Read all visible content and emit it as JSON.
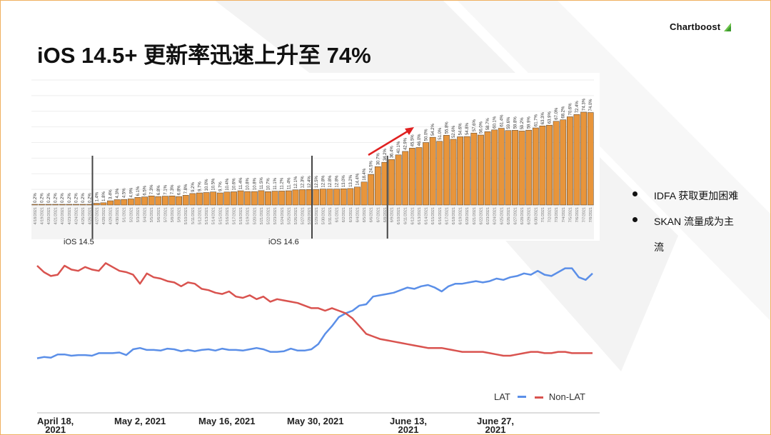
{
  "header": {
    "logo_text": "Chartboost",
    "title": "iOS 14.5+ 更新率迅速上升至 74%"
  },
  "bullets": [
    {
      "text": "IDFA 获取更加困难"
    },
    {
      "text": "SKAN 流量成为主流"
    }
  ],
  "colors": {
    "bar": "#E8953B",
    "bar_edge": "#4a3b2a",
    "lat": "#5B8FE8",
    "nonlat": "#D9534F",
    "arrow": "#E02020",
    "marker": "#444444"
  },
  "chart_data": [
    {
      "type": "bar",
      "categories": [
        "4/18/2021",
        "4/19/2021",
        "4/20/2021",
        "4/21/2021",
        "4/22/2021",
        "4/23/2021",
        "4/24/2021",
        "4/25/2021",
        "4/26/2021",
        "4/27/2021",
        "4/28/2021",
        "4/29/2021",
        "4/30/2021",
        "5/1/2021",
        "5/2/2021",
        "5/3/2021",
        "5/4/2021",
        "5/5/2021",
        "5/6/2021",
        "5/7/2021",
        "5/8/2021",
        "5/9/2021",
        "5/10/2021",
        "5/11/2021",
        "5/12/2021",
        "5/13/2021",
        "5/14/2021",
        "5/15/2021",
        "5/16/2021",
        "5/17/2021",
        "5/18/2021",
        "5/19/2021",
        "5/20/2021",
        "5/21/2021",
        "5/22/2021",
        "5/23/2021",
        "5/24/2021",
        "5/25/2021",
        "5/26/2021",
        "5/27/2021",
        "5/28/2021",
        "5/29/2021",
        "5/30/2021",
        "5/31/2021",
        "6/1/2021",
        "6/2/2021",
        "6/3/2021",
        "6/4/2021",
        "6/5/2021",
        "6/6/2021",
        "6/7/2021",
        "6/8/2021",
        "6/9/2021",
        "6/10/2021",
        "6/11/2021",
        "6/12/2021",
        "6/13/2021",
        "6/14/2021",
        "6/15/2021",
        "6/16/2021",
        "6/17/2021",
        "6/18/2021",
        "6/19/2021",
        "6/20/2021",
        "6/21/2021",
        "6/22/2021",
        "6/23/2021",
        "6/24/2021",
        "6/25/2021",
        "6/26/2021",
        "6/27/2021",
        "6/28/2021",
        "6/29/2021",
        "6/30/2021",
        "7/1/2021",
        "7/2/2021",
        "7/3/2021",
        "7/4/2021",
        "7/5/2021",
        "7/6/2021",
        "7/7/2021",
        "7/8/2021"
      ],
      "values": [
        0.2,
        0.2,
        0.2,
        0.2,
        0.2,
        0.2,
        0.2,
        0.2,
        0.2,
        1.4,
        1.8,
        3.4,
        4.3,
        4.5,
        4.9,
        6.1,
        6.5,
        7.3,
        6.8,
        7.1,
        7.3,
        6.8,
        7.8,
        9.2,
        9.7,
        10.0,
        10.5,
        9.7,
        10.4,
        10.6,
        11.4,
        10.8,
        10.8,
        11.5,
        10.7,
        11.1,
        11.2,
        11.4,
        12.1,
        12.3,
        12.4,
        12.5,
        12.8,
        12.8,
        12.8,
        13.0,
        13.2,
        14.4,
        18.4,
        24.5,
        30.7,
        34.2,
        36.4,
        40.1,
        42.9,
        45.5,
        46.0,
        50.0,
        54.2,
        51.0,
        55.8,
        52.6,
        54.6,
        54.8,
        57.6,
        56.0,
        58.7,
        60.1,
        61.4,
        59.6,
        59.8,
        59.2,
        59.9,
        61.7,
        63.3,
        63.9,
        67.0,
        68.2,
        70.6,
        72.4,
        74.3,
        74.0
      ],
      "data_labels": [
        "0.2%",
        "0.2%",
        "0.2%",
        "0.2%",
        "0.2%",
        "0.2%",
        "0.2%",
        "0.2%",
        "0.2%",
        "1.4%",
        "1.8%",
        "3.4%",
        "4.3%",
        "4.5%",
        "4.9%",
        "6.1%",
        "6.5%",
        "7.3%",
        "6.8%",
        "7.1%",
        "7.3%",
        "6.8%",
        "7.8%",
        "9.2%",
        "9.7%",
        "10.0%",
        "10.5%",
        "9.7%",
        "10.4%",
        "10.6%",
        "11.4%",
        "10.8%",
        "10.8%",
        "11.5%",
        "10.7%",
        "11.1%",
        "11.2%",
        "11.4%",
        "12.1%",
        "12.3%",
        "12.4%",
        "12.5%",
        "12.8%",
        "12.8%",
        "12.8%",
        "13.0%",
        "13.2%",
        "14.4%",
        "18.4%",
        "24.5%",
        "30.7%",
        "34.2%",
        "36.4%",
        "40.1%",
        "42.9%",
        "45.5%",
        "46.0%",
        "50.0%",
        "54.2%",
        "51.0%",
        "55.8%",
        "52.6%",
        "54.6%",
        "54.8%",
        "57.6%",
        "56.0%",
        "58.7%",
        "60.1%",
        "61.4%",
        "59.6%",
        "59.8%",
        "59.2%",
        "59.9%",
        "61.7%",
        "63.3%",
        "63.9%",
        "67.0%",
        "68.2%",
        "70.6%",
        "72.4%",
        "74.3%",
        "74.0%"
      ],
      "ylim": [
        0,
        100
      ],
      "grid": true,
      "markers": [
        {
          "label": "iOS 14.5",
          "index": 9
        },
        {
          "label": "iOS 14.6",
          "index": 41
        },
        {
          "label": "",
          "index": 52
        }
      ]
    },
    {
      "type": "line",
      "x": [
        "4/18",
        "4/19",
        "4/20",
        "4/21",
        "4/22",
        "4/23",
        "4/24",
        "4/25",
        "4/26",
        "4/27",
        "4/28",
        "4/29",
        "4/30",
        "5/1",
        "5/2",
        "5/3",
        "5/4",
        "5/5",
        "5/6",
        "5/7",
        "5/8",
        "5/9",
        "5/10",
        "5/11",
        "5/12",
        "5/13",
        "5/14",
        "5/15",
        "5/16",
        "5/17",
        "5/18",
        "5/19",
        "5/20",
        "5/21",
        "5/22",
        "5/23",
        "5/24",
        "5/25",
        "5/26",
        "5/27",
        "5/28",
        "5/29",
        "5/30",
        "5/31",
        "6/1",
        "6/2",
        "6/3",
        "6/4",
        "6/5",
        "6/6",
        "6/7",
        "6/8",
        "6/9",
        "6/10",
        "6/11",
        "6/12",
        "6/13",
        "6/14",
        "6/15",
        "6/16",
        "6/17",
        "6/18",
        "6/19",
        "6/20",
        "6/21",
        "6/22",
        "6/23",
        "6/24",
        "6/25",
        "6/26",
        "6/27",
        "6/28",
        "6/29",
        "6/30",
        "7/1",
        "7/2",
        "7/3",
        "7/4",
        "7/5",
        "7/6",
        "7/7",
        "7/8"
      ],
      "series": [
        {
          "name": "LAT",
          "values": [
            23,
            24,
            23.5,
            26,
            26,
            25,
            25.5,
            25.5,
            25,
            27,
            27,
            27,
            27.5,
            25.5,
            30,
            31,
            29.5,
            29.5,
            29,
            30.5,
            30,
            28.5,
            29.5,
            28.5,
            29.5,
            30,
            29,
            30.5,
            29.5,
            29.5,
            29,
            30,
            31,
            30,
            28,
            28,
            28.5,
            30.5,
            29,
            29,
            30,
            34,
            42,
            48,
            55,
            58,
            60,
            64,
            65,
            71,
            72,
            73,
            74,
            76,
            78,
            77,
            79,
            80,
            78,
            75,
            79,
            81,
            81,
            82,
            83,
            82,
            83,
            85,
            84,
            86,
            87,
            89,
            88,
            91,
            88,
            87,
            90,
            93,
            93,
            86,
            84,
            89
          ]
        },
        {
          "name": "Non-LAT",
          "values": [
            95,
            90,
            87,
            88,
            95,
            92,
            91,
            94,
            92,
            91,
            97,
            94,
            91,
            90,
            88,
            81,
            89,
            86,
            85,
            83,
            82,
            79,
            82,
            81,
            77,
            76,
            74,
            73,
            75,
            71,
            70,
            72,
            69,
            71,
            67,
            69,
            68,
            67,
            66,
            64,
            62,
            62,
            60,
            62,
            60,
            58,
            54,
            48,
            42,
            40,
            38,
            37,
            36,
            35,
            34,
            33,
            32,
            31,
            31,
            31,
            30,
            29,
            28,
            28,
            28,
            28,
            27,
            26,
            25,
            25,
            26,
            27,
            28,
            28,
            27,
            27,
            28,
            28,
            27,
            27,
            27,
            27
          ]
        }
      ],
      "ylim": [
        0,
        100
      ],
      "legend": "bottom-right",
      "xtick_labels": [
        "April 18,\n2021",
        "May 2, 2021",
        "May 16, 2021",
        "May 30, 2021",
        "June 13,\n2021",
        "June 27,\n2021"
      ]
    }
  ]
}
